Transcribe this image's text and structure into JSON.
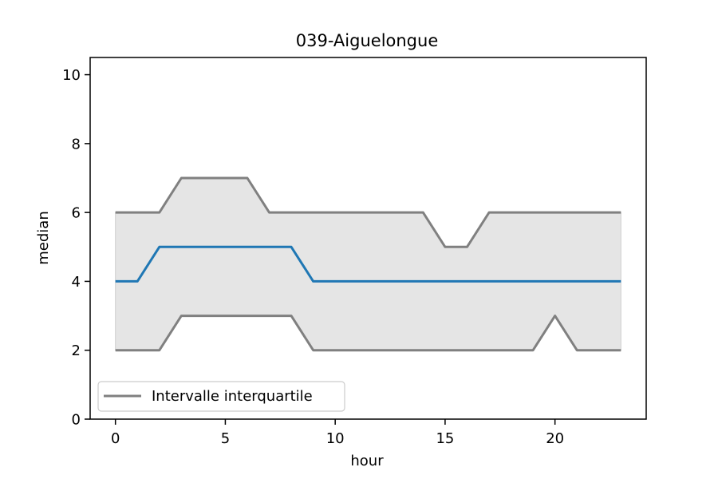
{
  "chart_data": {
    "type": "line",
    "title": "039-Aiguelongue",
    "xlabel": "hour",
    "ylabel": "median",
    "xlim": [
      -1.15,
      24.15
    ],
    "ylim": [
      0,
      10.5
    ],
    "xticks": [
      0,
      5,
      10,
      15,
      20
    ],
    "yticks": [
      0,
      2,
      4,
      6,
      8,
      10
    ],
    "x": [
      0,
      1,
      2,
      3,
      4,
      5,
      6,
      7,
      8,
      9,
      10,
      11,
      12,
      13,
      14,
      15,
      16,
      17,
      18,
      19,
      20,
      21,
      22,
      23
    ],
    "median": [
      4,
      4,
      5,
      5,
      5,
      5,
      5,
      5,
      5,
      4,
      4,
      4,
      4,
      4,
      4,
      4,
      4,
      4,
      4,
      4,
      4,
      4,
      4,
      4
    ],
    "q1": [
      2,
      2,
      2,
      3,
      3,
      3,
      3,
      3,
      3,
      2,
      2,
      2,
      2,
      2,
      2,
      2,
      2,
      2,
      2,
      2,
      3,
      2,
      2,
      2
    ],
    "q3": [
      6,
      6,
      6,
      7,
      7,
      7,
      7,
      6,
      6,
      6,
      6,
      6,
      6,
      6,
      6,
      5,
      5,
      6,
      6,
      6,
      6,
      6,
      6,
      6
    ],
    "legend": {
      "label": "Intervalle interquartile",
      "position": "lower-left"
    },
    "colors": {
      "median": "#1f77b4",
      "iqr_line": "#808080",
      "iqr_fill": "#e5e5e5"
    },
    "grid": false
  }
}
